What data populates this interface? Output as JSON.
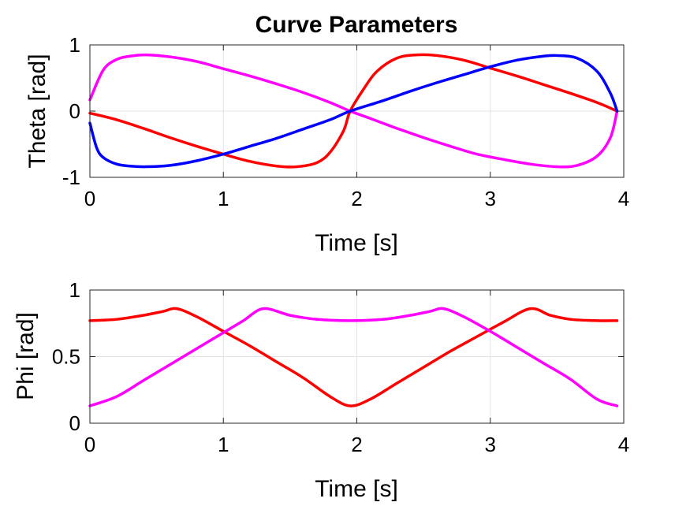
{
  "chart_data": [
    {
      "type": "line",
      "title": "Curve Parameters",
      "xlabel": "Time [s]",
      "ylabel": "Theta [rad]",
      "xlim": [
        0,
        4
      ],
      "ylim": [
        -1,
        1
      ],
      "xticks": [
        0,
        1,
        2,
        3,
        4
      ],
      "yticks": [
        -1,
        0,
        1
      ],
      "xtick_labels": [
        "0",
        "1",
        "2",
        "3",
        "4"
      ],
      "ytick_labels": [
        "-1",
        "0",
        "1"
      ],
      "grid": true,
      "series": [
        {
          "color": "#ff00ff",
          "x": [
            0,
            0.1,
            0.2,
            0.3,
            0.42,
            0.6,
            0.8,
            1.0,
            1.2,
            1.4,
            1.6,
            1.8,
            1.95,
            2.1,
            2.3,
            2.5,
            2.7,
            2.9,
            3.1,
            3.3,
            3.5,
            3.65,
            3.8,
            3.9,
            3.95
          ],
          "y": [
            0.17,
            0.62,
            0.78,
            0.83,
            0.85,
            0.82,
            0.75,
            0.64,
            0.53,
            0.41,
            0.28,
            0.13,
            0.0,
            -0.11,
            -0.26,
            -0.4,
            -0.53,
            -0.65,
            -0.73,
            -0.8,
            -0.84,
            -0.82,
            -0.68,
            -0.4,
            0.0
          ]
        },
        {
          "color": "#ff0000",
          "x": [
            0,
            0.2,
            0.4,
            0.6,
            0.8,
            1.0,
            1.2,
            1.4,
            1.55,
            1.7,
            1.8,
            1.9,
            1.95,
            2.05,
            2.15,
            2.3,
            2.45,
            2.6,
            2.8,
            3.0,
            3.2,
            3.4,
            3.6,
            3.8,
            3.95
          ],
          "y": [
            -0.03,
            -0.13,
            -0.26,
            -0.4,
            -0.53,
            -0.65,
            -0.76,
            -0.83,
            -0.84,
            -0.78,
            -0.62,
            -0.3,
            0.0,
            0.33,
            0.6,
            0.8,
            0.85,
            0.84,
            0.77,
            0.65,
            0.53,
            0.4,
            0.27,
            0.13,
            0.0
          ]
        },
        {
          "color": "#0000ff",
          "x": [
            0,
            0.05,
            0.1,
            0.2,
            0.3,
            0.42,
            0.6,
            0.8,
            1.0,
            1.2,
            1.4,
            1.6,
            1.8,
            1.95,
            2.2,
            2.4,
            2.6,
            2.8,
            3.0,
            3.2,
            3.4,
            3.5,
            3.65,
            3.8,
            3.9,
            3.95
          ],
          "y": [
            -0.18,
            -0.55,
            -0.7,
            -0.8,
            -0.83,
            -0.84,
            -0.82,
            -0.75,
            -0.65,
            -0.53,
            -0.41,
            -0.27,
            -0.13,
            0.0,
            0.16,
            0.3,
            0.43,
            0.55,
            0.67,
            0.77,
            0.83,
            0.84,
            0.8,
            0.6,
            0.27,
            0.0
          ]
        }
      ]
    },
    {
      "type": "line",
      "title": "",
      "xlabel": "Time [s]",
      "ylabel": "Phi [rad]",
      "xlim": [
        0,
        4
      ],
      "ylim": [
        0,
        1
      ],
      "xticks": [
        0,
        1,
        2,
        3,
        4
      ],
      "yticks": [
        0,
        0.5,
        1
      ],
      "xtick_labels": [
        "0",
        "1",
        "2",
        "3",
        "4"
      ],
      "ytick_labels": [
        "0",
        "0.5",
        "1"
      ],
      "grid": true,
      "series": [
        {
          "color": "#ff0000",
          "x": [
            0,
            0.2,
            0.4,
            0.55,
            0.65,
            0.8,
            1.0,
            1.2,
            1.4,
            1.6,
            1.8,
            1.95,
            2.1,
            2.3,
            2.5,
            2.7,
            2.9,
            3.1,
            3.3,
            3.45,
            3.6,
            3.8,
            3.95
          ],
          "y": [
            0.77,
            0.78,
            0.81,
            0.84,
            0.86,
            0.8,
            0.69,
            0.58,
            0.46,
            0.34,
            0.2,
            0.13,
            0.18,
            0.3,
            0.42,
            0.54,
            0.65,
            0.76,
            0.86,
            0.81,
            0.78,
            0.77,
            0.77
          ]
        },
        {
          "color": "#ff00ff",
          "x": [
            0,
            0.2,
            0.4,
            0.6,
            0.8,
            1.0,
            1.15,
            1.3,
            1.5,
            1.7,
            1.95,
            2.2,
            2.4,
            2.55,
            2.65,
            2.8,
            3.0,
            3.2,
            3.4,
            3.6,
            3.8,
            3.95
          ],
          "y": [
            0.13,
            0.2,
            0.32,
            0.44,
            0.56,
            0.68,
            0.77,
            0.86,
            0.81,
            0.78,
            0.77,
            0.78,
            0.81,
            0.84,
            0.86,
            0.8,
            0.69,
            0.57,
            0.45,
            0.33,
            0.18,
            0.13
          ]
        }
      ]
    }
  ]
}
